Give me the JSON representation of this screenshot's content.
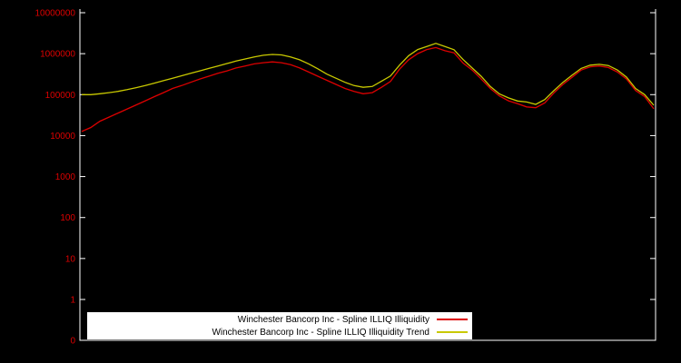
{
  "chart_data": {
    "type": "line",
    "title": "",
    "xlabel": "",
    "ylabel": "",
    "background_color": "#000000",
    "axis_color": "#ffffff",
    "tick_label_color": "#dd0000",
    "y_axis": {
      "scale": "log",
      "tick_labels": [
        "10000000",
        "1000000",
        "100000",
        "10000",
        "1000",
        "100",
        "10",
        "1",
        "0"
      ],
      "ylim_log_decades": [
        0,
        7
      ]
    },
    "x_axis": {
      "tick_labels": [],
      "note": "no visible x tick labels"
    },
    "legend": {
      "position": "bottom-center",
      "background": "#ffffff",
      "text_color": "#000000"
    },
    "x": [
      0,
      1,
      2,
      3,
      4,
      5,
      6,
      7,
      8,
      9,
      10,
      11,
      12,
      13,
      14,
      15,
      16,
      17,
      18,
      19,
      20,
      21,
      22,
      23,
      24,
      25,
      26,
      27,
      28,
      29,
      30,
      31,
      32,
      33,
      34,
      35,
      36,
      37,
      38,
      39,
      40,
      41,
      42,
      43,
      44,
      45,
      46,
      47,
      48,
      49,
      50,
      51,
      52,
      53,
      54,
      55,
      56,
      57,
      58,
      59,
      60,
      61,
      62,
      63
    ],
    "series": [
      {
        "name": "Winchester Bancorp Inc - Spline ILLIQ Illiquidity",
        "color": "#dd0000",
        "values": [
          12600,
          15800,
          22400,
          28200,
          35500,
          44700,
          56200,
          70800,
          89100,
          112000,
          141000,
          166000,
          200000,
          240000,
          282000,
          331000,
          380000,
          447000,
          501000,
          562000,
          603000,
          631000,
          603000,
          537000,
          447000,
          355000,
          282000,
          224000,
          178000,
          141000,
          120000,
          105000,
          112000,
          150000,
          209000,
          420000,
          708000,
          1000000,
          1260000,
          1410000,
          1180000,
          1050000,
          590000,
          398000,
          240000,
          141000,
          93000,
          70800,
          60000,
          50100,
          48000,
          63100,
          110000,
          178000,
          265000,
          398000,
          479000,
          501000,
          460000,
          355000,
          240000,
          126000,
          89100,
          45000
        ]
      },
      {
        "name": "Winchester Bancorp Inc - Spline ILLIQ Illiquidity Trend",
        "color": "#c9c900",
        "values": [
          100000,
          100000,
          105000,
          112000,
          120000,
          132000,
          148000,
          166000,
          191000,
          219000,
          251000,
          288000,
          331000,
          380000,
          437000,
          501000,
          575000,
          661000,
          741000,
          832000,
          912000,
          955000,
          933000,
          832000,
          708000,
          562000,
          427000,
          316000,
          251000,
          200000,
          166000,
          151000,
          158000,
          212000,
          285000,
          525000,
          891000,
          1260000,
          1500000,
          1780000,
          1500000,
          1250000,
          720000,
          447000,
          280000,
          158000,
          104000,
          83200,
          70000,
          66100,
          58000,
          75900,
          125000,
          200000,
          298000,
          437000,
          525000,
          550000,
          515000,
          398000,
          268000,
          141000,
          100000,
          55000
        ]
      }
    ]
  }
}
